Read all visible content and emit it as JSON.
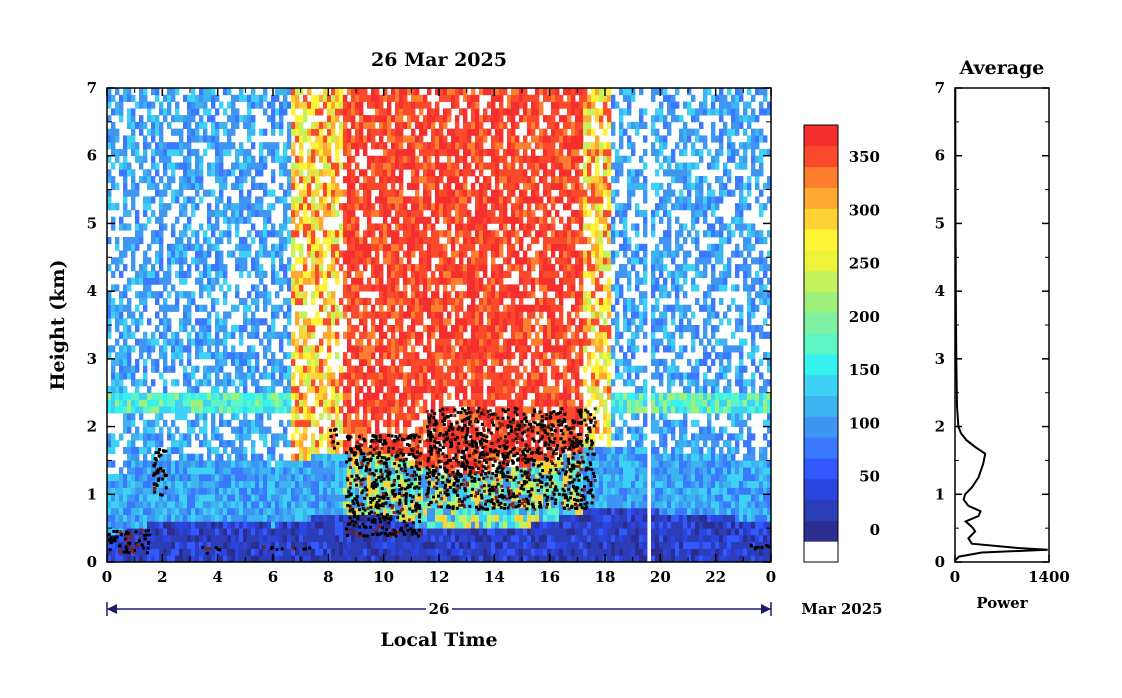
{
  "chart_data": [
    {
      "type": "heatmap",
      "title": "26 Mar 2025",
      "xlabel": "Local Time",
      "ylabel": "Height (km)",
      "xlim": [
        0,
        24
      ],
      "ylim": [
        0,
        7
      ],
      "x_ticks": [
        "0",
        "2",
        "4",
        "6",
        "8",
        "10",
        "12",
        "14",
        "16",
        "18",
        "20",
        "22",
        "0"
      ],
      "y_ticks": [
        "0",
        "1",
        "2",
        "3",
        "4",
        "5",
        "6",
        "7"
      ],
      "date_bar": {
        "day_label": "26",
        "month_label": "Mar 2025"
      },
      "data_gap_hour": 19.6,
      "background_zone": [
        {
          "from": 0,
          "to": 6.6,
          "upper": "blue-cyan"
        },
        {
          "from": 6.6,
          "to": 8.6,
          "upper": "yellow-orange"
        },
        {
          "from": 8.6,
          "to": 17.2,
          "upper": "red"
        },
        {
          "from": 17.2,
          "to": 18.2,
          "upper": "yellow-orange"
        },
        {
          "from": 18.2,
          "to": 24,
          "upper": "blue-cyan"
        }
      ],
      "boundary_layer_top_km": [
        {
          "t": 0,
          "h": 0.35
        },
        {
          "t": 1,
          "h": 0.5
        },
        {
          "t": 2,
          "h": 0.6
        },
        {
          "t": 4,
          "h": 0.6
        },
        {
          "t": 6,
          "h": 0.55
        },
        {
          "t": 8,
          "h": 0.7
        },
        {
          "t": 10,
          "h": 0.7
        },
        {
          "t": 12,
          "h": 0.45
        },
        {
          "t": 14,
          "h": 0.45
        },
        {
          "t": 16,
          "h": 0.6
        },
        {
          "t": 18,
          "h": 0.85
        },
        {
          "t": 20,
          "h": 0.75
        },
        {
          "t": 22,
          "h": 0.7
        },
        {
          "t": 24,
          "h": 0.55
        }
      ],
      "cloud_returns": [
        {
          "t": [
            0.0,
            1.5
          ],
          "h": [
            0.15,
            0.5
          ]
        },
        {
          "t": [
            1.6,
            2.1
          ],
          "h": [
            1.0,
            1.7
          ]
        },
        {
          "t": [
            3.4,
            4.1
          ],
          "h": [
            0.15,
            0.25
          ]
        },
        {
          "t": [
            5.5,
            7.5
          ],
          "h": [
            0.2,
            0.25
          ]
        },
        {
          "t": [
            8.0,
            8.3
          ],
          "h": [
            1.7,
            2.0
          ]
        },
        {
          "t": [
            8.6,
            11.3
          ],
          "h": [
            0.4,
            1.9
          ]
        },
        {
          "t": [
            11.5,
            17.6
          ],
          "h": [
            0.8,
            2.3
          ]
        },
        {
          "t": [
            23.2,
            24.0
          ],
          "h": [
            0.2,
            0.3
          ]
        }
      ],
      "colorbar": {
        "ticks": [
          "0",
          "50",
          "100",
          "150",
          "200",
          "250",
          "300",
          "350"
        ],
        "range": [
          -30,
          380
        ],
        "colors": [
          "#ffffff",
          "#2b2e8f",
          "#2c3db8",
          "#2b45e0",
          "#3258ff",
          "#3a78ff",
          "#3e95f2",
          "#3cb4f0",
          "#3dd2f5",
          "#35f2ee",
          "#5ef5c4",
          "#7ef2a0",
          "#9ef27c",
          "#c4f25c",
          "#ecf33a",
          "#fff535",
          "#fed234",
          "#fea831",
          "#fd7e2e",
          "#fb4a2b",
          "#f52f2e"
        ]
      }
    },
    {
      "type": "line",
      "title": "Average",
      "xlabel": "Power",
      "xlim": [
        0,
        1400
      ],
      "ylim": [
        0,
        7
      ],
      "x_ticks": [
        "0",
        "1400"
      ],
      "y_ticks": [
        "0",
        "1",
        "2",
        "3",
        "4",
        "5",
        "6",
        "7"
      ],
      "points": [
        {
          "y": 0.02,
          "x": 0
        },
        {
          "y": 0.08,
          "x": 60
        },
        {
          "y": 0.14,
          "x": 400
        },
        {
          "y": 0.18,
          "x": 1380
        },
        {
          "y": 0.21,
          "x": 900
        },
        {
          "y": 0.27,
          "x": 250
        },
        {
          "y": 0.35,
          "x": 200
        },
        {
          "y": 0.45,
          "x": 300
        },
        {
          "y": 0.5,
          "x": 270
        },
        {
          "y": 0.6,
          "x": 160
        },
        {
          "y": 0.68,
          "x": 350
        },
        {
          "y": 0.75,
          "x": 380
        },
        {
          "y": 0.83,
          "x": 200
        },
        {
          "y": 0.92,
          "x": 130
        },
        {
          "y": 1.0,
          "x": 150
        },
        {
          "y": 1.1,
          "x": 250
        },
        {
          "y": 1.25,
          "x": 350
        },
        {
          "y": 1.45,
          "x": 420
        },
        {
          "y": 1.6,
          "x": 450
        },
        {
          "y": 1.7,
          "x": 300
        },
        {
          "y": 1.8,
          "x": 170
        },
        {
          "y": 1.9,
          "x": 90
        },
        {
          "y": 2.0,
          "x": 50
        },
        {
          "y": 2.3,
          "x": 30
        },
        {
          "y": 2.6,
          "x": 25
        },
        {
          "y": 3.0,
          "x": 20
        },
        {
          "y": 3.5,
          "x": 15
        },
        {
          "y": 4.0,
          "x": 12
        },
        {
          "y": 4.5,
          "x": 10
        },
        {
          "y": 5.0,
          "x": 8
        },
        {
          "y": 5.5,
          "x": 7
        },
        {
          "y": 6.0,
          "x": 6
        },
        {
          "y": 6.5,
          "x": 5
        },
        {
          "y": 7.0,
          "x": 5
        }
      ]
    }
  ]
}
